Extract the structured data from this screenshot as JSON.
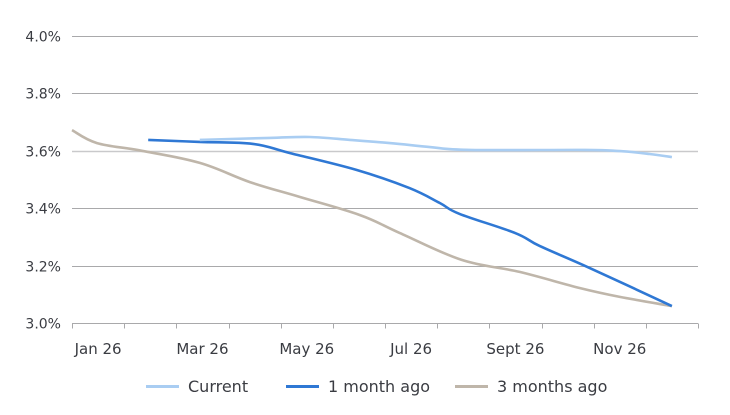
{
  "chart_data": {
    "type": "line",
    "title": "",
    "xlabel": "",
    "ylabel": "",
    "ylim": [
      3.0,
      4.0
    ],
    "y_ticks": [
      "4.0%",
      "3.8%",
      "3.6%",
      "3.4%",
      "3.2%",
      "3.0%"
    ],
    "y_tick_values": [
      4.0,
      3.8,
      3.6,
      3.4,
      3.2,
      3.0
    ],
    "x_tick_labels": [
      "Jan 26",
      "Mar 26",
      "May 26",
      "Jul 26",
      "Sept 26",
      "Nov 26"
    ],
    "x_range_months": [
      0,
      12
    ],
    "grid": true,
    "legend_position": "bottom",
    "series": [
      {
        "name": "Current",
        "color": "#a9cdf2",
        "x": [
          2.45,
          3.79,
          4.56,
          5.33,
          6.09,
          6.86,
          7.63,
          9.83,
          10.5,
          11.07,
          11.5
        ],
        "values": [
          3.638,
          3.645,
          3.648,
          3.638,
          3.627,
          3.613,
          3.603,
          3.603,
          3.599,
          3.589,
          3.578
        ]
      },
      {
        "name": "1 month ago",
        "color": "#2f78d4",
        "x": [
          1.46,
          2.45,
          3.47,
          4.18,
          5.46,
          6.47,
          7.05,
          7.43,
          8.49,
          8.97,
          9.92,
          11.5
        ],
        "values": [
          3.638,
          3.631,
          3.624,
          3.592,
          3.533,
          3.47,
          3.418,
          3.38,
          3.314,
          3.268,
          3.192,
          3.059
        ]
      },
      {
        "name": "3 months ago",
        "color": "#bfb6aa",
        "x": [
          0.0,
          0.48,
          1.34,
          2.45,
          3.41,
          4.37,
          5.52,
          6.28,
          7.47,
          8.58,
          9.73,
          10.5,
          11.5
        ],
        "values": [
          3.672,
          3.627,
          3.6,
          3.558,
          3.491,
          3.439,
          3.376,
          3.314,
          3.22,
          3.178,
          3.122,
          3.091,
          3.059
        ]
      }
    ]
  },
  "legend": {
    "items": [
      {
        "label": "Current",
        "color": "#a9cdf2"
      },
      {
        "label": "1 month ago",
        "color": "#2f78d4"
      },
      {
        "label": "3 months ago",
        "color": "#bfb6aa"
      }
    ]
  }
}
